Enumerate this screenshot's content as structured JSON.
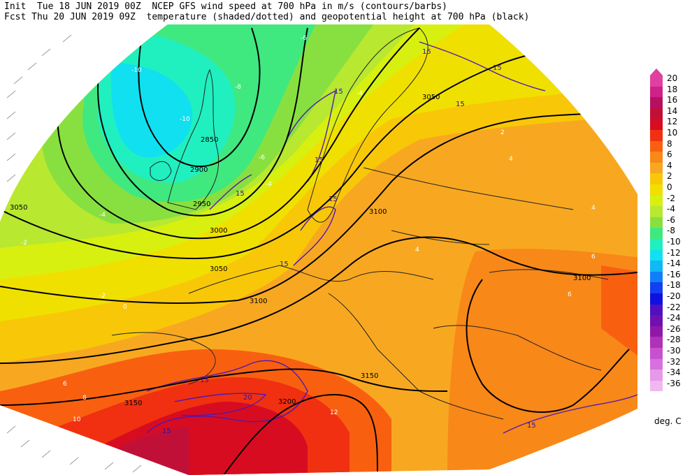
{
  "header": {
    "line1_prefix": "Init  Tue 18 JUN 2019 00Z",
    "line1_suffix": "NCEP GFS wind speed at 700 hPa in m/s (contours/barbs)",
    "line2_prefix": "Fcst Thu 20 JUN 2019 09Z",
    "line2_suffix": "temperature (shaded/dotted) and geopotential height at 700 hPa (black)"
  },
  "colorbar": {
    "units": "deg. C",
    "levels": [
      {
        "label": "20",
        "color": "#e040a0"
      },
      {
        "label": "18",
        "color": "#d0208a"
      },
      {
        "label": "16",
        "color": "#b81060"
      },
      {
        "label": "14",
        "color": "#c01038"
      },
      {
        "label": "12",
        "color": "#d80c20"
      },
      {
        "label": "10",
        "color": "#f03010"
      },
      {
        "label": "8",
        "color": "#f86010"
      },
      {
        "label": "6",
        "color": "#f88818"
      },
      {
        "label": "4",
        "color": "#f8a820"
      },
      {
        "label": "2",
        "color": "#f8c808"
      },
      {
        "label": "0",
        "color": "#f0e000"
      },
      {
        "label": "-2",
        "color": "#d8f010"
      },
      {
        "label": "-4",
        "color": "#b8e830"
      },
      {
        "label": "-6",
        "color": "#88e040"
      },
      {
        "label": "-8",
        "color": "#40e880"
      },
      {
        "label": "-10",
        "color": "#20f0c0"
      },
      {
        "label": "-12",
        "color": "#10e0f0"
      },
      {
        "label": "-14",
        "color": "#10b8f8"
      },
      {
        "label": "-16",
        "color": "#1080f8"
      },
      {
        "label": "-18",
        "color": "#1040f0"
      },
      {
        "label": "-20",
        "color": "#1010e0"
      },
      {
        "label": "-22",
        "color": "#5010c0"
      },
      {
        "label": "-24",
        "color": "#7010b0"
      },
      {
        "label": "-26",
        "color": "#9018a8"
      },
      {
        "label": "-28",
        "color": "#b030b8"
      },
      {
        "label": "-30",
        "color": "#c850d0"
      },
      {
        "label": "-32",
        "color": "#d870e0"
      },
      {
        "label": "-34",
        "color": "#e898e8"
      },
      {
        "label": "-36",
        "color": "#f0b8f0"
      }
    ]
  },
  "height_labels": [
    "2850",
    "2900",
    "2950",
    "3000",
    "3050",
    "3050",
    "3050",
    "3100",
    "3100",
    "3100",
    "3150",
    "3150",
    "3200"
  ],
  "wind_labels": [
    "15",
    "15",
    "15",
    "15",
    "15",
    "15",
    "15",
    "15",
    "20",
    "15",
    "15",
    "15"
  ],
  "temp_labels": [
    "-10",
    "-10",
    "-8",
    "-6",
    "-4",
    "-4",
    "-2",
    "-2",
    "0",
    "2",
    "4",
    "4",
    "4",
    "6",
    "6",
    "6",
    "8",
    "10",
    "12",
    "-6",
    "-4"
  ]
}
